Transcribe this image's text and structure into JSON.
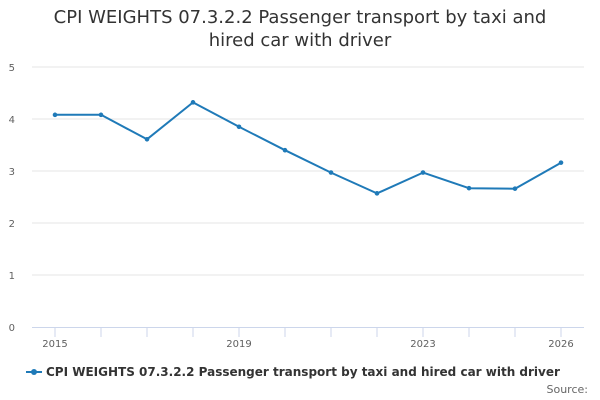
{
  "chart_data": {
    "type": "line",
    "title": "CPI WEIGHTS 07.3.2.2 Passenger transport by taxi and hired car with driver",
    "x": [
      2015,
      2016,
      2017,
      2018,
      2019,
      2020,
      2021,
      2022,
      2023,
      2024,
      2025,
      2026
    ],
    "series": [
      {
        "name": "CPI WEIGHTS 07.3.2.2 Passenger transport by taxi and hired car with driver",
        "values": [
          4.08,
          4.08,
          3.61,
          4.32,
          3.85,
          3.4,
          2.97,
          2.57,
          2.97,
          2.67,
          2.66,
          3.16
        ],
        "color": "#1f7ab8"
      }
    ],
    "x_tick_labels": [
      2015,
      2019,
      2023,
      2026
    ],
    "y_ticks": [
      0,
      1,
      2,
      3,
      4,
      5
    ],
    "ylim": [
      0,
      5
    ],
    "xlim": [
      2015,
      2026
    ],
    "xlabel": "",
    "ylabel": "",
    "grid": true,
    "legend_position": "bottom-left"
  },
  "footer": {
    "source_label": "Source:"
  }
}
